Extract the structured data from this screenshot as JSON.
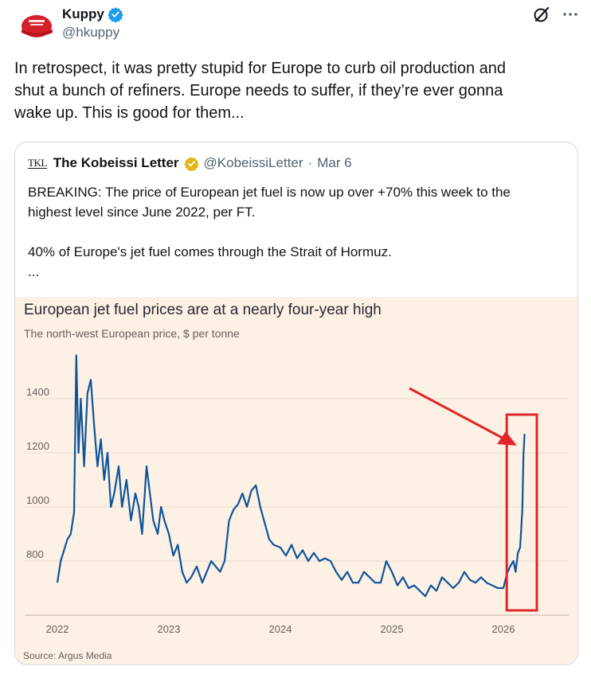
{
  "tweet": {
    "display_name": "Kuppy",
    "handle": "@hkuppy",
    "text": "In retrospect, it was pretty stupid for Europe to curb oil production and\nshut a bunch of refiners. Europe needs to suffer, if they’re ever gonna\nwake up. This is good for them...",
    "avatar_icon": "red-cap-avatar",
    "colors": {
      "verified": "#1d9bf0",
      "gold_verified": "#e2b719",
      "avatar_cap": "#d4202a"
    }
  },
  "quote": {
    "logo_text": "TKL",
    "display_name": "The Kobeissi Letter",
    "handle": "@KobeissiLetter",
    "separator": "·",
    "date": "Mar 6",
    "text": "BREAKING: The price of European jet fuel is now up over +70% this week to the\nhighest level since June 2022, per FT.\n\n40% of Europe's jet fuel comes through the Strait of Hormuz.\n..."
  },
  "chart_data": {
    "type": "line",
    "title": "European jet fuel prices are at a nearly four-year high",
    "subtitle": "The north-west European price, $ per tonne",
    "source": "Source: Argus Media",
    "xlabel": "",
    "ylabel": "",
    "x_ticks": [
      "2022",
      "2023",
      "2024",
      "2025",
      "2026"
    ],
    "y_ticks": [
      800,
      1000,
      1200,
      1400
    ],
    "xlim": [
      2022.0,
      2026.25
    ],
    "ylim": [
      600,
      1600
    ],
    "grid": true,
    "line_color": "#0f5499",
    "annotation": {
      "arrow_color": "#e0262b",
      "box_color": "#e0262b",
      "box_from": 2026.03,
      "box_to": 2026.3
    },
    "series": [
      {
        "x": [
          2022.0,
          2022.03,
          2022.06,
          2022.09,
          2022.12,
          2022.15,
          2022.17,
          2022.19,
          2022.21,
          2022.24,
          2022.27,
          2022.3,
          2022.33,
          2022.36,
          2022.39,
          2022.42,
          2022.45,
          2022.48,
          2022.51,
          2022.55,
          2022.58,
          2022.62,
          2022.66,
          2022.7,
          2022.73,
          2022.76,
          2022.8,
          2022.83,
          2022.86,
          2022.9,
          2022.93,
          2022.96,
          2023.0,
          2023.04,
          2023.08,
          2023.12,
          2023.16,
          2023.2,
          2023.25,
          2023.3,
          2023.34,
          2023.38,
          2023.42,
          2023.46,
          2023.5,
          2023.54,
          2023.58,
          2023.62,
          2023.66,
          2023.7,
          2023.74,
          2023.78,
          2023.82,
          2023.86,
          2023.9,
          2023.94,
          2024.0,
          2024.05,
          2024.1,
          2024.15,
          2024.2,
          2024.25,
          2024.3,
          2024.35,
          2024.4,
          2024.45,
          2024.5,
          2024.55,
          2024.6,
          2024.65,
          2024.7,
          2024.75,
          2024.8,
          2024.85,
          2024.9,
          2024.95,
          2025.0,
          2025.05,
          2025.1,
          2025.15,
          2025.2,
          2025.25,
          2025.3,
          2025.35,
          2025.4,
          2025.45,
          2025.5,
          2025.55,
          2025.6,
          2025.65,
          2025.7,
          2025.75,
          2025.8,
          2025.85,
          2025.9,
          2025.95,
          2026.0,
          2026.03,
          2026.06,
          2026.09,
          2026.11,
          2026.13,
          2026.15,
          2026.17,
          2026.18,
          2026.19
        ],
        "y": [
          720,
          800,
          840,
          880,
          900,
          980,
          1560,
          1200,
          1400,
          1150,
          1420,
          1470,
          1300,
          1150,
          1250,
          1100,
          1200,
          1000,
          1050,
          1150,
          1000,
          1100,
          950,
          1050,
          1000,
          900,
          1150,
          1050,
          950,
          900,
          1000,
          950,
          900,
          820,
          860,
          760,
          720,
          740,
          780,
          720,
          760,
          800,
          780,
          760,
          800,
          950,
          990,
          1010,
          1050,
          1000,
          1060,
          1080,
          1000,
          940,
          880,
          860,
          850,
          820,
          860,
          810,
          840,
          800,
          830,
          800,
          810,
          800,
          760,
          730,
          760,
          720,
          720,
          760,
          740,
          720,
          720,
          800,
          760,
          710,
          740,
          700,
          710,
          690,
          670,
          710,
          690,
          740,
          720,
          700,
          720,
          760,
          730,
          720,
          740,
          720,
          710,
          700,
          700,
          750,
          780,
          800,
          760,
          830,
          850,
          990,
          1190,
          1270
        ]
      }
    ]
  }
}
